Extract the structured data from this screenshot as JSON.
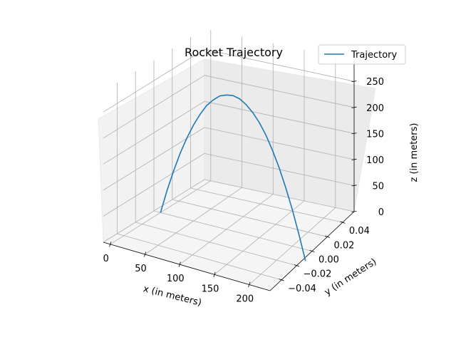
{
  "chart_data": {
    "type": "line",
    "projection": "3d",
    "title": "Rocket Trajectory",
    "xlabel": "x (in meters)",
    "ylabel": "y (in meters)",
    "zlabel": "z (in meters)",
    "xlim": [
      -10,
      230
    ],
    "ylim": [
      -0.055,
      0.055
    ],
    "zlim": [
      0,
      290
    ],
    "xticks": [
      "0",
      "50",
      "100",
      "150",
      "200"
    ],
    "yticks": [
      "−0.04",
      "−0.02",
      "0.00",
      "0.02",
      "0.04"
    ],
    "zticks": [
      "0",
      "50",
      "100",
      "150",
      "200",
      "250"
    ],
    "grid": true,
    "legend": {
      "location": "top-right",
      "entries": [
        "Trajectory"
      ]
    },
    "series": [
      {
        "name": "Trajectory",
        "color": "#1f77b4",
        "x": [
          0,
          10,
          20,
          30,
          40,
          50,
          60,
          70,
          80,
          90,
          100,
          110,
          120,
          130,
          140,
          150,
          160,
          170,
          180,
          190,
          200,
          210,
          220
        ],
        "y": [
          0,
          0,
          0,
          0,
          0,
          0,
          0,
          0,
          0,
          0,
          0,
          0,
          0,
          0,
          0,
          0,
          0,
          0,
          0,
          0,
          0,
          0,
          0
        ],
        "z": [
          0,
          46,
          87,
          124,
          156,
          184,
          208,
          228,
          242,
          253,
          258,
          260,
          257,
          249,
          237,
          221,
          200,
          174,
          144,
          109,
          70,
          26,
          -22
        ]
      }
    ]
  }
}
